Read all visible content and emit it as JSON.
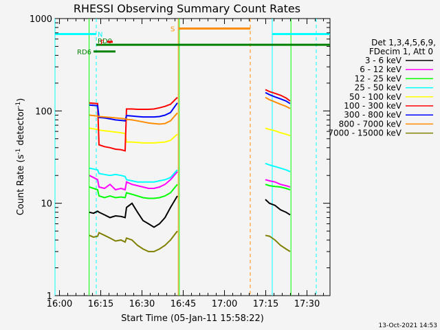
{
  "chart_data": {
    "type": "line",
    "title": "RHESSI Observing Summary Count Rates",
    "xlabel": "Start Time (05-Jan-11 15:58:22)",
    "ylabel_main": "Count Rate (s",
    "ylabel_sup1": "-1",
    "ylabel_mid": " detector",
    "ylabel_sup2": "-1",
    "ylabel_end": ")",
    "x_units": "minutes after 15:58:22",
    "xlim": [
      0,
      100
    ],
    "ylim": [
      1,
      1000
    ],
    "y_scale": "log",
    "x_ticks": [
      {
        "x": 1.63,
        "label": "16:00"
      },
      {
        "x": 16.63,
        "label": "16:15"
      },
      {
        "x": 31.63,
        "label": "16:30"
      },
      {
        "x": 46.63,
        "label": "16:45"
      },
      {
        "x": 61.63,
        "label": "17:00"
      },
      {
        "x": 76.63,
        "label": "17:15"
      },
      {
        "x": 91.63,
        "label": "17:30"
      }
    ],
    "y_ticks": [
      {
        "y": 1,
        "label": "1"
      },
      {
        "y": 10,
        "label": "10"
      },
      {
        "y": 100,
        "label": "100"
      },
      {
        "y": 1000,
        "label": "1000"
      }
    ],
    "legend": {
      "position": "right",
      "header1": "Det 1,3,4,5,6,9,",
      "header2": "FDecim 1, Att 0"
    },
    "series": [
      {
        "name": "3 - 6 keV",
        "color": "#000000",
        "segments": [
          {
            "x": [
              12.5,
              14,
              15.5,
              16,
              18,
              20,
              22,
              24,
              25.5,
              26,
              28,
              30,
              32,
              34,
              36,
              38,
              40,
              42,
              44.5
            ],
            "y": [
              8,
              7.8,
              8.2,
              8,
              7.5,
              7,
              7.3,
              7.2,
              7,
              9,
              10,
              8,
              6.5,
              6,
              5.5,
              6,
              7,
              9,
              12
            ]
          },
          {
            "x": [
              76.5,
              78,
              80,
              82,
              84,
              85.5
            ],
            "y": [
              11,
              10,
              9.5,
              8.5,
              8,
              7.5
            ]
          }
        ]
      },
      {
        "name": "6 - 12 keV",
        "color": "#ff00ff",
        "segments": [
          {
            "x": [
              12.5,
              14,
              15.5,
              16,
              18,
              20,
              22,
              24,
              25.5,
              26,
              28,
              30,
              32,
              34,
              36,
              38,
              40,
              42,
              44.5
            ],
            "y": [
              20,
              19,
              18,
              15,
              14.5,
              16,
              14,
              14.5,
              14,
              17,
              16,
              15.5,
              15,
              14.5,
              14.5,
              15,
              16,
              18,
              22
            ]
          },
          {
            "x": [
              76.5,
              78,
              80,
              82,
              84,
              85.5
            ],
            "y": [
              18,
              17.5,
              17,
              16,
              15.5,
              15
            ]
          }
        ]
      },
      {
        "name": "12 - 25 keV",
        "color": "#00ff00",
        "segments": [
          {
            "x": [
              12.5,
              14,
              15.5,
              16,
              18,
              20,
              22,
              24,
              25.5,
              26,
              28,
              30,
              32,
              34,
              36,
              38,
              40,
              42,
              44.5
            ],
            "y": [
              15,
              14.5,
              14,
              12,
              11.5,
              12,
              11.5,
              11.7,
              11.5,
              13,
              12.5,
              12,
              11.5,
              11.3,
              11.3,
              11.5,
              12,
              13,
              16
            ]
          },
          {
            "x": [
              76.5,
              78,
              80,
              82,
              84,
              85.5
            ],
            "y": [
              16,
              15.5,
              15.2,
              15,
              14.5,
              14
            ]
          }
        ]
      },
      {
        "name": "25 - 50 keV",
        "color": "#00ffff",
        "segments": [
          {
            "x": [
              12.5,
              14,
              15.5,
              16,
              18,
              20,
              22,
              24,
              25.5,
              26,
              28,
              30,
              32,
              34,
              36,
              38,
              40,
              42,
              44.5
            ],
            "y": [
              24,
              23.5,
              23,
              21,
              20.5,
              20,
              20.5,
              20,
              19.5,
              18,
              17.5,
              17,
              17,
              17,
              17,
              17.5,
              18,
              19,
              23
            ]
          },
          {
            "x": [
              76.5,
              78,
              80,
              82,
              84,
              85.5
            ],
            "y": [
              27,
              26,
              25,
              24,
              23,
              22
            ]
          }
        ]
      },
      {
        "name": "50 - 100 keV",
        "color": "#ffff00",
        "segments": [
          {
            "x": [
              12.5,
              14,
              15.5,
              16,
              18,
              20,
              22,
              24,
              25.5,
              26,
              28,
              30,
              32,
              34,
              36,
              38,
              40,
              42,
              44.5
            ],
            "y": [
              65,
              64,
              63,
              62,
              61,
              60,
              59,
              58,
              57,
              46,
              46,
              45.5,
              45,
              45,
              45,
              45.5,
              46,
              48,
              56
            ]
          },
          {
            "x": [
              76.5,
              78,
              80,
              82,
              84,
              85.5
            ],
            "y": [
              65,
              63,
              61,
              58,
              56,
              54
            ]
          }
        ]
      },
      {
        "name": "100 - 300 keV",
        "color": "#ff0000",
        "segments": [
          {
            "x": [
              12.5,
              14,
              15.5,
              16,
              18,
              20,
              22,
              24,
              25.5,
              26,
              28,
              30,
              32,
              34,
              36,
              38,
              40,
              42,
              44.5
            ],
            "y": [
              122,
              121,
              120,
              43,
              41,
              40,
              38.5,
              38,
              37,
              105,
              105,
              104,
              104,
              104,
              105,
              108,
              112,
              118,
              140
            ]
          },
          {
            "x": [
              76.5,
              78,
              80,
              82,
              84,
              85.5
            ],
            "y": [
              170,
              162,
              155,
              148,
              138,
              128
            ]
          }
        ]
      },
      {
        "name": "300 - 800 keV",
        "color": "#0000ff",
        "segments": [
          {
            "x": [
              12.5,
              14,
              15.5,
              16,
              18,
              20,
              22,
              24,
              25.5,
              26,
              28,
              30,
              32,
              34,
              36,
              38,
              40,
              42,
              44.5
            ],
            "y": [
              116,
              115,
              114,
              85,
              84,
              82,
              80,
              79,
              78,
              89,
              88,
              87,
              86,
              86,
              86,
              87,
              90,
              96,
              122
            ]
          },
          {
            "x": [
              76.5,
              78,
              80,
              82,
              84,
              85.5
            ],
            "y": [
              158,
              150,
              142,
              135,
              128,
              120
            ]
          }
        ]
      },
      {
        "name": "800 - 7000 keV",
        "color": "#ff8c00",
        "segments": [
          {
            "x": [
              12.5,
              14,
              15.5,
              16,
              18,
              20,
              22,
              24,
              25.5,
              26,
              28,
              30,
              32,
              34,
              36,
              38,
              40,
              42,
              44.5
            ],
            "y": [
              90,
              89,
              88,
              87,
              86,
              85,
              84,
              83,
              82,
              81,
              80,
              78,
              76,
              74,
              73,
              72,
              73,
              78,
              95
            ]
          },
          {
            "x": [
              76.5,
              78,
              80,
              82,
              84,
              85.5
            ],
            "y": [
              140,
              132,
              125,
              118,
              112,
              106
            ]
          }
        ]
      },
      {
        "name": "7000 - 15000 keV",
        "color": "#808000",
        "segments": [
          {
            "x": [
              12.5,
              14,
              15.5,
              16,
              18,
              20,
              22,
              24,
              25.5,
              26,
              28,
              30,
              32,
              34,
              36,
              38,
              40,
              42,
              44.5
            ],
            "y": [
              4.5,
              4.3,
              4.4,
              4.8,
              4.5,
              4.2,
              3.9,
              4,
              3.8,
              4.2,
              4,
              3.5,
              3.2,
              3,
              3,
              3.2,
              3.5,
              4,
              5
            ]
          },
          {
            "x": [
              76.5,
              78,
              80,
              82,
              84,
              85.5
            ],
            "y": [
              4.5,
              4.4,
              4,
              3.5,
              3.2,
              3
            ]
          }
        ]
      }
    ],
    "flags": [
      {
        "label": "N",
        "color": "#00ffff",
        "y": 680,
        "segments": [
          [
            0,
            15
          ],
          [
            79,
            100
          ]
        ]
      },
      {
        "label": "RD0",
        "color": "#008000",
        "y": 520,
        "segments": [
          [
            15,
            100
          ]
        ]
      },
      {
        "label": "F",
        "color": "#ff0000",
        "y": 560,
        "segments": [
          [
            19,
            21
          ]
        ]
      },
      {
        "label": "RD6",
        "color": "#008000",
        "y": 440,
        "segments": [
          [
            14,
            22
          ]
        ]
      },
      {
        "label": "S",
        "color": "#ff8c00",
        "y": 780,
        "segments": [
          [
            45,
            71
          ]
        ]
      }
    ],
    "vlines": [
      {
        "x": 0,
        "color": "#00ffff",
        "style": "solid"
      },
      {
        "x": 15,
        "color": "#00ffff",
        "style": "dashed"
      },
      {
        "x": 79,
        "color": "#00ffff",
        "style": "solid"
      },
      {
        "x": 95,
        "color": "#00ffff",
        "style": "dashed"
      },
      {
        "x": 44.8,
        "color": "#ff8c00",
        "style": "solid"
      },
      {
        "x": 71,
        "color": "#ff8c00",
        "style": "dashed"
      },
      {
        "x": 45.2,
        "color": "#00ff00",
        "style": "solid"
      },
      {
        "x": 12.4,
        "color": "#00ff00",
        "style": "solid"
      },
      {
        "x": 85.8,
        "color": "#00ff00",
        "style": "solid"
      }
    ]
  },
  "footer": {
    "timestamp": "13-Oct-2021 14:53"
  }
}
